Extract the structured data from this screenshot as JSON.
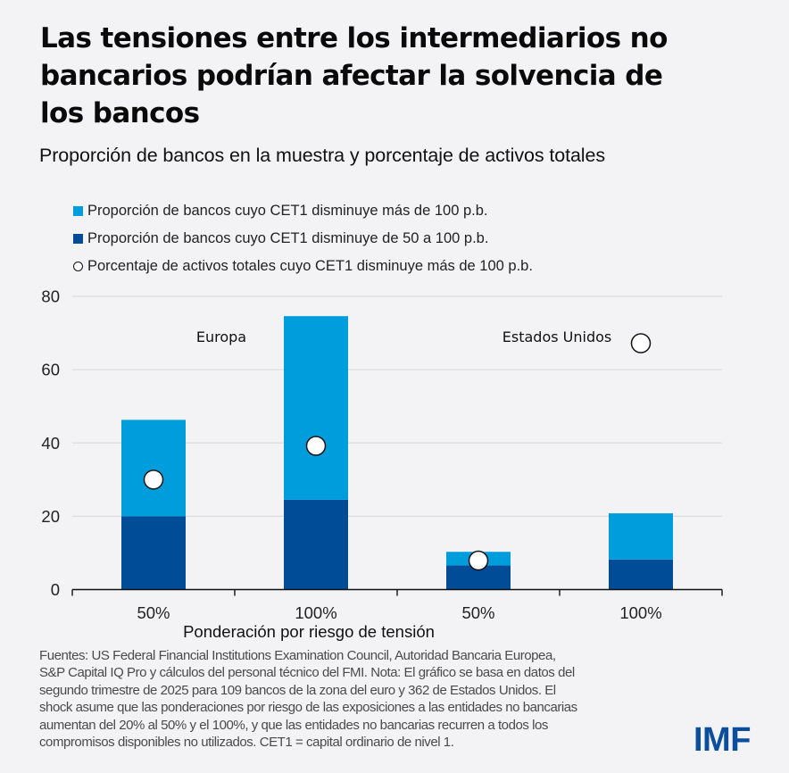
{
  "header": {
    "title_lines": [
      "Las tensiones entre los intermediarios no",
      "bancarios podrían afectar la solvencia de",
      "los bancos"
    ],
    "subtitle": "Proporción de bancos en la muestra y porcentaje de activos totales"
  },
  "legend": {
    "items": [
      {
        "label": "Proporción de bancos cuyo CET1 disminuye más de 100 p.b.",
        "icon": "light-blue-square"
      },
      {
        "label": "Proporción de bancos cuyo CET1 disminuye de 50 a 100 p.b.",
        "icon": "dark-blue-square"
      },
      {
        "label": "Porcentaje de activos totales cuyo CET1 disminuye más de 100 p.b.",
        "icon": "white-circle"
      }
    ]
  },
  "colors": {
    "light_blue": "#009ddc",
    "dark_blue": "#004c97",
    "marker_fill": "#ffffff",
    "marker_stroke": "#111111",
    "gridline": "#dcdcdf",
    "axis": "#111111",
    "logo": "#0b4f9c"
  },
  "chart_data": {
    "type": "bar",
    "stacked": true,
    "title": "Las tensiones entre los intermediarios no bancarios podrían afectar la solvencia de los bancos",
    "subtitle": "Proporción de bancos en la muestra y porcentaje de activos totales",
    "xlabel": "Ponderación por riesgo de tensión",
    "ylabel": "",
    "categories": [
      "50%",
      "100%",
      "50%",
      "100%"
    ],
    "groups": [
      {
        "label": "Europa",
        "categories": [
          0,
          1
        ]
      },
      {
        "label": "Estados Unidos",
        "categories": [
          2,
          3
        ]
      }
    ],
    "series": [
      {
        "name": "Proporción de bancos cuyo CET1 disminuye de 50 a 100 p.b.",
        "type": "bar",
        "color": "#004c97",
        "values": [
          20,
          24.5,
          6.6,
          8.2
        ]
      },
      {
        "name": "Proporción de bancos cuyo CET1 disminuye más de 100 p.b.",
        "type": "bar",
        "color": "#009ddc",
        "values": [
          26.3,
          50.1,
          3.7,
          12.6
        ]
      },
      {
        "name": "Porcentaje de activos totales cuyo CET1 disminuye más de 100 p.b.",
        "type": "scatter",
        "marker": "circle",
        "values": [
          30,
          39.2,
          7.9,
          67.2
        ]
      }
    ],
    "bar_totals": [
      46.3,
      74.6,
      10.3,
      20.8
    ],
    "ylim": [
      0,
      80
    ],
    "yticks": [
      0,
      20,
      40,
      60,
      80
    ],
    "grid": true,
    "legend_position": "top-left"
  },
  "footnote": {
    "lines": [
      "Fuentes: US Federal Financial Institutions Examination Council, Autoridad Bancaria Europea,",
      "S&P Capital IQ Pro y cálculos del personal técnico del FMI. Nota: El gráfico se basa en datos del",
      "segundo trimestre de 2025 para 109 bancos de la zona del euro y 362 de Estados Unidos. El",
      "shock asume que las ponderaciones por riesgo de las exposiciones a las entidades no bancarias",
      "aumentan del 20% al 50% y el 100%, y que las entidades no bancarias recurren a todos los",
      "compromisos disponibles no utilizados. CET1 = capital ordinario de nivel 1."
    ]
  },
  "logo": {
    "text": "IMF"
  }
}
